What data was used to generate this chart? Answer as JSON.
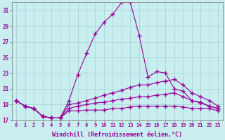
{
  "title": "",
  "xlabel": "Windchill (Refroidissement éolien,°C)",
  "ylabel": "",
  "bg_color": "#c8eef0",
  "grid_color": "#b0d8dc",
  "line_color": "#990099",
  "xlim": [
    -0.5,
    23.5
  ],
  "ylim": [
    17,
    32
  ],
  "xticks": [
    0,
    1,
    2,
    3,
    4,
    5,
    6,
    7,
    8,
    9,
    10,
    11,
    12,
    13,
    14,
    15,
    16,
    17,
    18,
    19,
    20,
    21,
    22,
    23
  ],
  "yticks": [
    17,
    19,
    21,
    23,
    25,
    27,
    29,
    31
  ],
  "line1": [
    19.5,
    18.8,
    18.5,
    17.5,
    17.3,
    17.3,
    19.5,
    22.8,
    25.5,
    28.0,
    29.5,
    30.5,
    32.0,
    32.0,
    27.8,
    22.5,
    23.2,
    23.0,
    21.0,
    20.7,
    19.5,
    19.2,
    18.8,
    18.5
  ],
  "line2": [
    19.5,
    18.8,
    18.5,
    17.5,
    17.3,
    17.3,
    19.0,
    19.2,
    19.5,
    19.8,
    20.2,
    20.5,
    20.8,
    21.2,
    21.5,
    21.5,
    21.8,
    22.0,
    22.2,
    21.5,
    20.5,
    20.0,
    19.5,
    18.8
  ],
  "line3": [
    19.5,
    18.8,
    18.5,
    17.5,
    17.3,
    17.3,
    18.5,
    18.8,
    19.0,
    19.2,
    19.3,
    19.5,
    19.7,
    19.8,
    20.0,
    20.0,
    20.2,
    20.3,
    20.5,
    20.0,
    19.5,
    19.3,
    18.8,
    18.5
  ],
  "line4": [
    19.5,
    18.8,
    18.5,
    17.5,
    17.3,
    17.3,
    18.2,
    18.2,
    18.3,
    18.3,
    18.3,
    18.5,
    18.5,
    18.7,
    18.8,
    18.8,
    18.8,
    18.8,
    18.8,
    18.7,
    18.5,
    18.5,
    18.5,
    18.2
  ]
}
